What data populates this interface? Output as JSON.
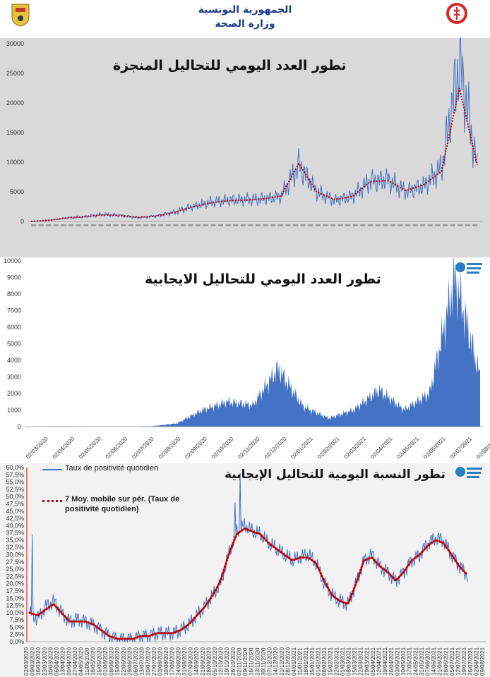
{
  "header": {
    "line1": "الجمهورية التونسية",
    "line2": "وزارة الصحة"
  },
  "colors": {
    "series_blue": "#4472c4",
    "moving_avg_red": "#c00000",
    "panel_grey": "#d9d9d9",
    "header_text": "#1f3a8a"
  },
  "chart_data": [
    {
      "type": "line",
      "title": "تطور العدد اليومي للتحاليل المنجزة",
      "ylim": [
        0,
        30000
      ],
      "yticks": [
        "0",
        "5000",
        "10000",
        "15000",
        "20000",
        "25000",
        "30000"
      ],
      "series": [
        {
          "x": [
            0,
            4,
            8,
            12,
            16,
            20,
            24,
            28,
            32,
            36,
            40,
            44,
            48,
            52,
            56,
            60,
            64,
            68,
            72,
            76,
            80,
            84,
            88,
            92,
            96,
            100
          ],
          "values": [
            0,
            200,
            600,
            800,
            1200,
            1000,
            600,
            900,
            1500,
            2500,
            3200,
            3600,
            3700,
            3800,
            4200,
            9500,
            5000,
            3500,
            4200,
            6800,
            7000,
            5000,
            6000,
            9000,
            27000,
            9000
          ]
        },
        {
          "x": [
            0,
            4,
            8,
            12,
            16,
            20,
            24,
            28,
            32,
            36,
            40,
            44,
            48,
            52,
            56,
            60,
            64,
            68,
            72,
            76,
            80,
            84,
            88,
            92,
            96,
            100
          ],
          "values": [
            0,
            200,
            600,
            800,
            1100,
            1000,
            700,
            900,
            1500,
            2400,
            3100,
            3500,
            3600,
            3800,
            4300,
            9800,
            5000,
            3700,
            4200,
            6700,
            6900,
            5200,
            6200,
            8500,
            22500,
            9500
          ]
        }
      ]
    },
    {
      "type": "area",
      "title": "تطور العدد اليومي للتحاليل الايجابية",
      "ylim": [
        0,
        10000
      ],
      "yticks": [
        "0",
        "1000",
        "2000",
        "3000",
        "4000",
        "5000",
        "6000",
        "7000",
        "8000",
        "9000",
        "10000"
      ],
      "x_labels": [
        "02/03/2020",
        "02/04/2020",
        "02/05/2020",
        "02/06/2020",
        "02/07/2020",
        "02/08/2020",
        "02/09/2020",
        "02/10/2020",
        "02/11/2020",
        "02/12/2020",
        "02/01/2021",
        "02/02/2021",
        "02/03/2021",
        "02/04/2021",
        "02/05/2021",
        "02/06/2021",
        "02/07/2021",
        "02/08/2021"
      ],
      "values": [
        0,
        20,
        20,
        10,
        10,
        30,
        200,
        1000,
        1500,
        1300,
        3500,
        1200,
        500,
        1000,
        2200,
        1000,
        2000,
        9000,
        3000
      ]
    },
    {
      "type": "line",
      "title": "تطور النسبة اليومية للتحاليل الإيجابية",
      "ylim": [
        0,
        0.6
      ],
      "yticks": [
        "0,0%",
        "2,5%",
        "5,0%",
        "7,5%",
        "10,0%",
        "12,5%",
        "15,0%",
        "17,5%",
        "20,0%",
        "22,5%",
        "25,0%",
        "27,5%",
        "30,0%",
        "32,5%",
        "35,0%",
        "37,5%",
        "40,0%",
        "42,5%",
        "45,0%",
        "47,5%",
        "50,0%",
        "52,5%",
        "55,0%",
        "57,5%",
        "60,0%"
      ],
      "x_labels": [
        "02/03/2020",
        "09/03/2020",
        "16/03/2020",
        "23/03/2020",
        "30/03/2020",
        "06/04/2020",
        "13/04/2020",
        "20/04/2020",
        "27/04/2020",
        "04/05/2020",
        "11/05/2020",
        "18/05/2020",
        "25/05/2020",
        "01/06/2020",
        "08/06/2020",
        "15/06/2020",
        "22/06/2020",
        "29/06/2020",
        "06/07/2020",
        "13/07/2020",
        "20/07/2020",
        "27/07/2020",
        "03/08/2020",
        "10/08/2020",
        "17/08/2020",
        "24/08/2020",
        "31/08/2020",
        "07/09/2020",
        "14/09/2020",
        "21/09/2020",
        "28/09/2020",
        "05/10/2020",
        "12/10/2020",
        "19/10/2020",
        "26/10/2020",
        "02/11/2020",
        "09/11/2020",
        "16/11/2020",
        "23/11/2020",
        "30/11/2020",
        "07/12/2020",
        "14/12/2020",
        "21/12/2020",
        "28/12/2020",
        "04/01/2021",
        "11/01/2021",
        "18/01/2021",
        "25/01/2021",
        "01/02/2021",
        "08/02/2021",
        "15/02/2021",
        "22/02/2021",
        "01/03/2021",
        "08/03/2021",
        "15/03/2021",
        "22/03/2021",
        "29/03/2021",
        "05/04/2021",
        "12/04/2021",
        "19/04/2021",
        "26/04/2021",
        "03/05/2021",
        "10/05/2021",
        "17/05/2021",
        "24/05/2021",
        "31/05/2021",
        "07/06/2021",
        "14/06/2021",
        "21/06/2021",
        "28/06/2021",
        "05/07/2021",
        "12/07/2021",
        "19/07/2021",
        "26/07/2021",
        "02/08/2021",
        "09/08/2021"
      ],
      "series": [
        {
          "name": "Taux de positivité quotidien",
          "values": [
            0.1,
            0.08,
            0.12,
            0.14,
            0.1,
            0.07,
            0.08,
            0.07,
            0.06,
            0.04,
            0.02,
            0.01,
            0.01,
            0.01,
            0.02,
            0.02,
            0.03,
            0.03,
            0.03,
            0.04,
            0.06,
            0.09,
            0.12,
            0.16,
            0.2,
            0.3,
            0.38,
            0.4,
            0.38,
            0.37,
            0.34,
            0.32,
            0.3,
            0.28,
            0.29,
            0.3,
            0.27,
            0.2,
            0.16,
            0.14,
            0.13,
            0.2,
            0.28,
            0.3,
            0.26,
            0.24,
            0.21,
            0.24,
            0.28,
            0.3,
            0.34,
            0.36,
            0.35,
            0.3,
            0.26,
            0.23
          ]
        },
        {
          "name": "7 Moy. mobile sur pér. (Taux de positivité quotidien)",
          "values": [
            0.1,
            0.09,
            0.11,
            0.13,
            0.1,
            0.07,
            0.07,
            0.07,
            0.06,
            0.04,
            0.02,
            0.01,
            0.01,
            0.01,
            0.02,
            0.02,
            0.03,
            0.03,
            0.03,
            0.04,
            0.06,
            0.09,
            0.12,
            0.16,
            0.21,
            0.3,
            0.37,
            0.39,
            0.38,
            0.37,
            0.34,
            0.32,
            0.3,
            0.28,
            0.29,
            0.29,
            0.27,
            0.21,
            0.16,
            0.14,
            0.13,
            0.2,
            0.28,
            0.29,
            0.26,
            0.24,
            0.21,
            0.24,
            0.28,
            0.3,
            0.33,
            0.35,
            0.34,
            0.3,
            0.26,
            0.23
          ]
        }
      ]
    }
  ]
}
